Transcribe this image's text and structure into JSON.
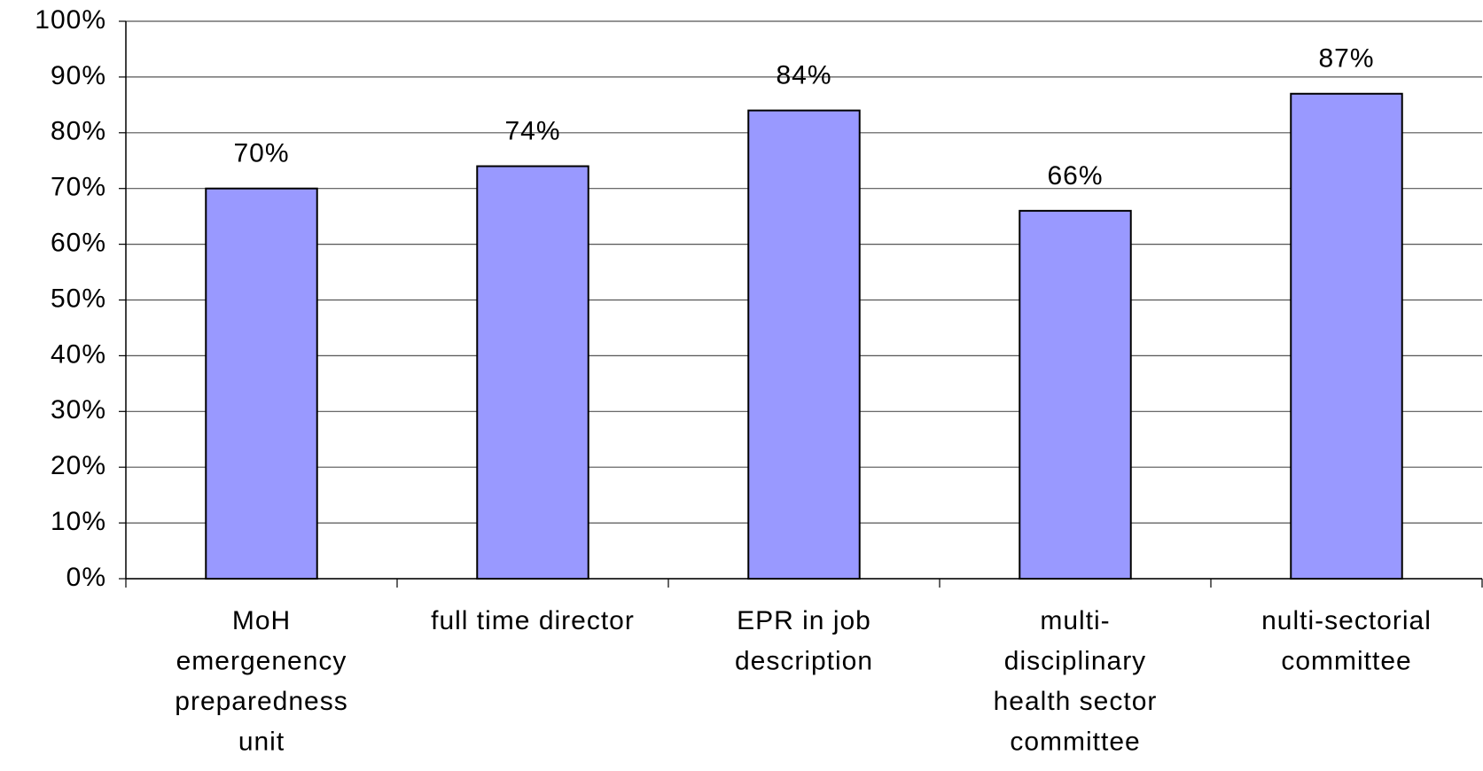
{
  "chart_data": {
    "type": "bar",
    "categories": [
      [
        "MoH",
        "emergenency",
        "preparedness",
        "unit"
      ],
      [
        "full time director"
      ],
      [
        "EPR in job",
        "description"
      ],
      [
        "multi-",
        "disciplinary",
        "health sector",
        "committee"
      ],
      [
        "nulti-sectorial",
        "committee"
      ]
    ],
    "values": [
      70,
      74,
      84,
      66,
      87
    ],
    "value_labels": [
      "70%",
      "74%",
      "84%",
      "66%",
      "87%"
    ],
    "color": "#9999ff",
    "ylim": [
      0,
      100
    ],
    "yticks": [
      {
        "value": 0,
        "label": "0%"
      },
      {
        "value": 10,
        "label": "10%"
      },
      {
        "value": 20,
        "label": "20%"
      },
      {
        "value": 30,
        "label": "30%"
      },
      {
        "value": 40,
        "label": "40%"
      },
      {
        "value": 50,
        "label": "50%"
      },
      {
        "value": 60,
        "label": "60%"
      },
      {
        "value": 70,
        "label": "70%"
      },
      {
        "value": 80,
        "label": "80%"
      },
      {
        "value": 90,
        "label": "90%"
      },
      {
        "value": 100,
        "label": "100%"
      }
    ],
    "grid": true
  }
}
